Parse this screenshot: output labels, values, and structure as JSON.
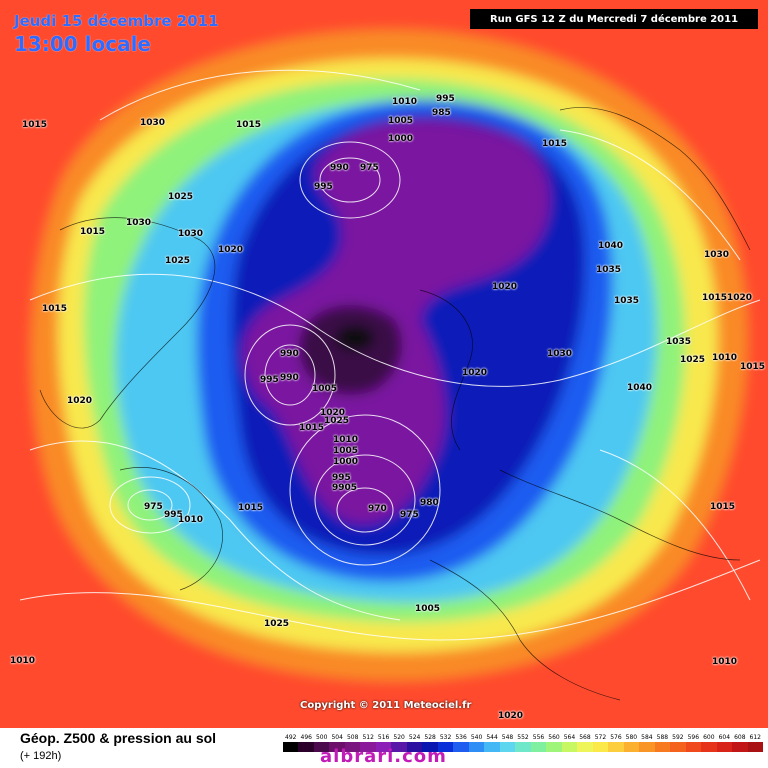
{
  "header": {
    "date": "Jeudi 15 décembre 2011",
    "time": "13:00 locale",
    "run": "Run GFS 12 Z du Mercredi 7 décembre 2011"
  },
  "footer": {
    "title": "Géop. Z500 & pression au sol",
    "lead_time": "(+ 192h)",
    "copyright": "Copyright © 2011 Meteociel.fr",
    "watermark": "albrari.com"
  },
  "legend": {
    "values": [
      "492",
      "496",
      "500",
      "504",
      "508",
      "512",
      "516",
      "520",
      "524",
      "528",
      "532",
      "536",
      "540",
      "544",
      "548",
      "552",
      "556",
      "560",
      "564",
      "568",
      "572",
      "576",
      "580",
      "584",
      "588",
      "592",
      "596",
      "600",
      "604",
      "608",
      "612"
    ],
    "colors": [
      "#000000",
      "#2a002a",
      "#4b0a4b",
      "#6b0f6b",
      "#7a1580",
      "#8a1a9a",
      "#8b1fb6",
      "#5a18a8",
      "#2c10a0",
      "#0a16b0",
      "#0a2ed8",
      "#1f5cf0",
      "#2f8ef5",
      "#44b8f5",
      "#5ed6f0",
      "#6ee8c8",
      "#7ef0a0",
      "#9ff57a",
      "#c8f764",
      "#eef55a",
      "#fbe94a",
      "#fccd3c",
      "#fbb030",
      "#f99426",
      "#f77a20",
      "#f5621e",
      "#f04a1c",
      "#e6341a",
      "#d82418",
      "#c21616",
      "#a81212"
    ]
  },
  "map": {
    "colors": {
      "background": "#ff4a2e",
      "ring_orange": "#f98a28",
      "ring_yellow": "#f8e84e",
      "ring_green": "#8ff27a",
      "ring_cyan": "#4ec8f2",
      "ring_blue": "#1f5cf0",
      "ring_navy": "#0a1ab8",
      "core_purple": "#7a14a0",
      "core_dark": "#3a0a46",
      "core_black": "#111111"
    },
    "pressure_labels": [
      {
        "t": "1015"
      },
      {
        "t": "1030"
      },
      {
        "t": "1015"
      },
      {
        "t": "1010"
      },
      {
        "t": "995"
      },
      {
        "t": "985"
      },
      {
        "t": "1005"
      },
      {
        "t": "1000"
      },
      {
        "t": "1015"
      },
      {
        "t": "990"
      },
      {
        "t": "975"
      },
      {
        "t": "995"
      },
      {
        "t": "1025"
      },
      {
        "t": "1015"
      },
      {
        "t": "1030"
      },
      {
        "t": "1030"
      },
      {
        "t": "1025"
      },
      {
        "t": "1020"
      },
      {
        "t": "1040"
      },
      {
        "t": "1030"
      },
      {
        "t": "1035"
      },
      {
        "t": "1020"
      },
      {
        "t": "1035"
      },
      {
        "t": "1015"
      },
      {
        "t": "1020"
      },
      {
        "t": "1015"
      },
      {
        "t": "990"
      },
      {
        "t": "995"
      },
      {
        "t": "990"
      },
      {
        "t": "1005"
      },
      {
        "t": "1030"
      },
      {
        "t": "1035"
      },
      {
        "t": "1025"
      },
      {
        "t": "1010"
      },
      {
        "t": "1015"
      },
      {
        "t": "1020"
      },
      {
        "t": "1020"
      },
      {
        "t": "1015"
      },
      {
        "t": "1025"
      },
      {
        "t": "1010"
      },
      {
        "t": "1005"
      },
      {
        "t": "1000"
      },
      {
        "t": "1040"
      },
      {
        "t": "995"
      },
      {
        "t": "9905"
      },
      {
        "t": "1020"
      },
      {
        "t": "975"
      },
      {
        "t": "995"
      },
      {
        "t": "1010"
      },
      {
        "t": "1015"
      },
      {
        "t": "970"
      },
      {
        "t": "975"
      },
      {
        "t": "980"
      },
      {
        "t": "1015"
      },
      {
        "t": "1005"
      },
      {
        "t": "1025"
      },
      {
        "t": "1010"
      },
      {
        "t": "1010"
      },
      {
        "t": "1020"
      }
    ]
  }
}
